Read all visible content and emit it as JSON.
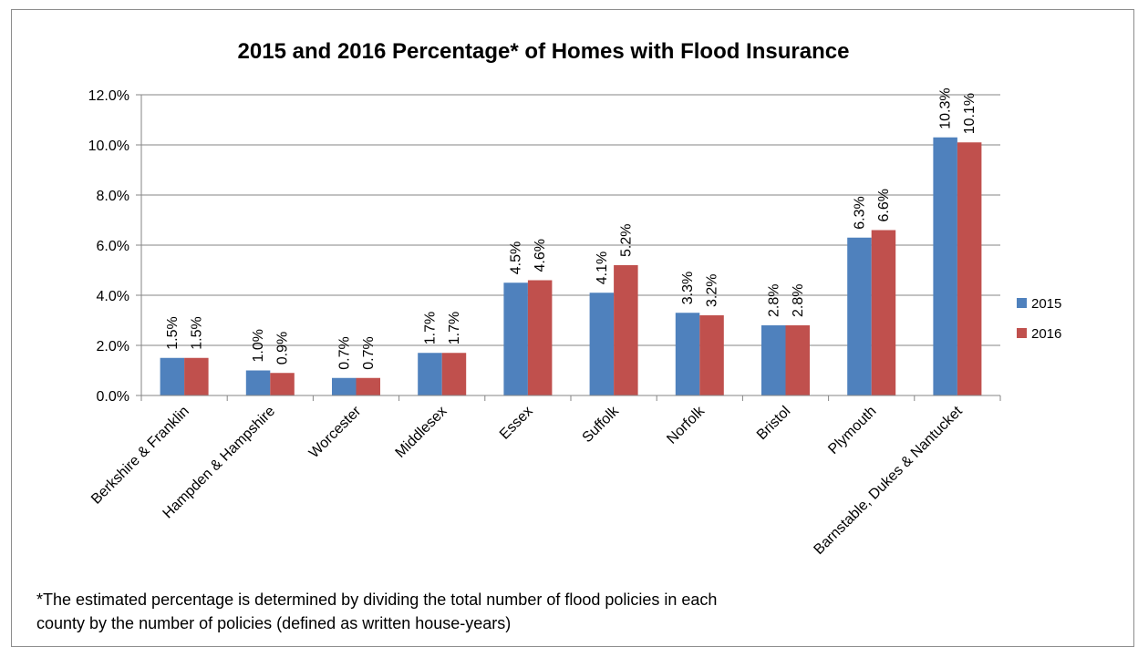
{
  "chart_data": {
    "type": "bar",
    "title": "2015 and 2016 Percentage* of Homes with Flood Insurance",
    "xlabel": "",
    "ylabel": "",
    "categories": [
      "Berkshire & Franklin",
      "Hampden  & Hampshire",
      "Worcester",
      "Middlesex",
      "Essex",
      "Suffolk",
      "Norfolk",
      "Bristol",
      "Plymouth",
      "Barnstable, Dukes & Nantucket"
    ],
    "series": [
      {
        "name": "2015",
        "color": "#4f81bd",
        "values": [
          1.5,
          1.0,
          0.7,
          1.7,
          4.5,
          4.1,
          3.3,
          2.8,
          6.3,
          10.3
        ],
        "labels": [
          "1.5%",
          "1.0%",
          "0.7%",
          "1.7%",
          "4.5%",
          "4.1%",
          "3.3%",
          "2.8%",
          "6.3%",
          "10.3%"
        ]
      },
      {
        "name": "2016",
        "color": "#c0504d",
        "values": [
          1.5,
          0.9,
          0.7,
          1.7,
          4.6,
          5.2,
          3.2,
          2.8,
          6.6,
          10.1
        ],
        "labels": [
          "1.5%",
          "0.9%",
          "0.7%",
          "1.7%",
          "4.6%",
          "5.2%",
          "3.2%",
          "2.8%",
          "6.6%",
          "10.1%"
        ]
      }
    ],
    "ylim": [
      0,
      12
    ],
    "yticks": [
      0,
      2,
      4,
      6,
      8,
      10,
      12
    ],
    "ytick_labels": [
      "0.0%",
      "2.0%",
      "4.0%",
      "6.0%",
      "8.0%",
      "10.0%",
      "12.0%"
    ],
    "grid": true,
    "legend_position": "right",
    "footnote": "*The estimated percentage is determined by dividing the total number of flood policies in each county by the number of policies (defined as written house-years)"
  }
}
